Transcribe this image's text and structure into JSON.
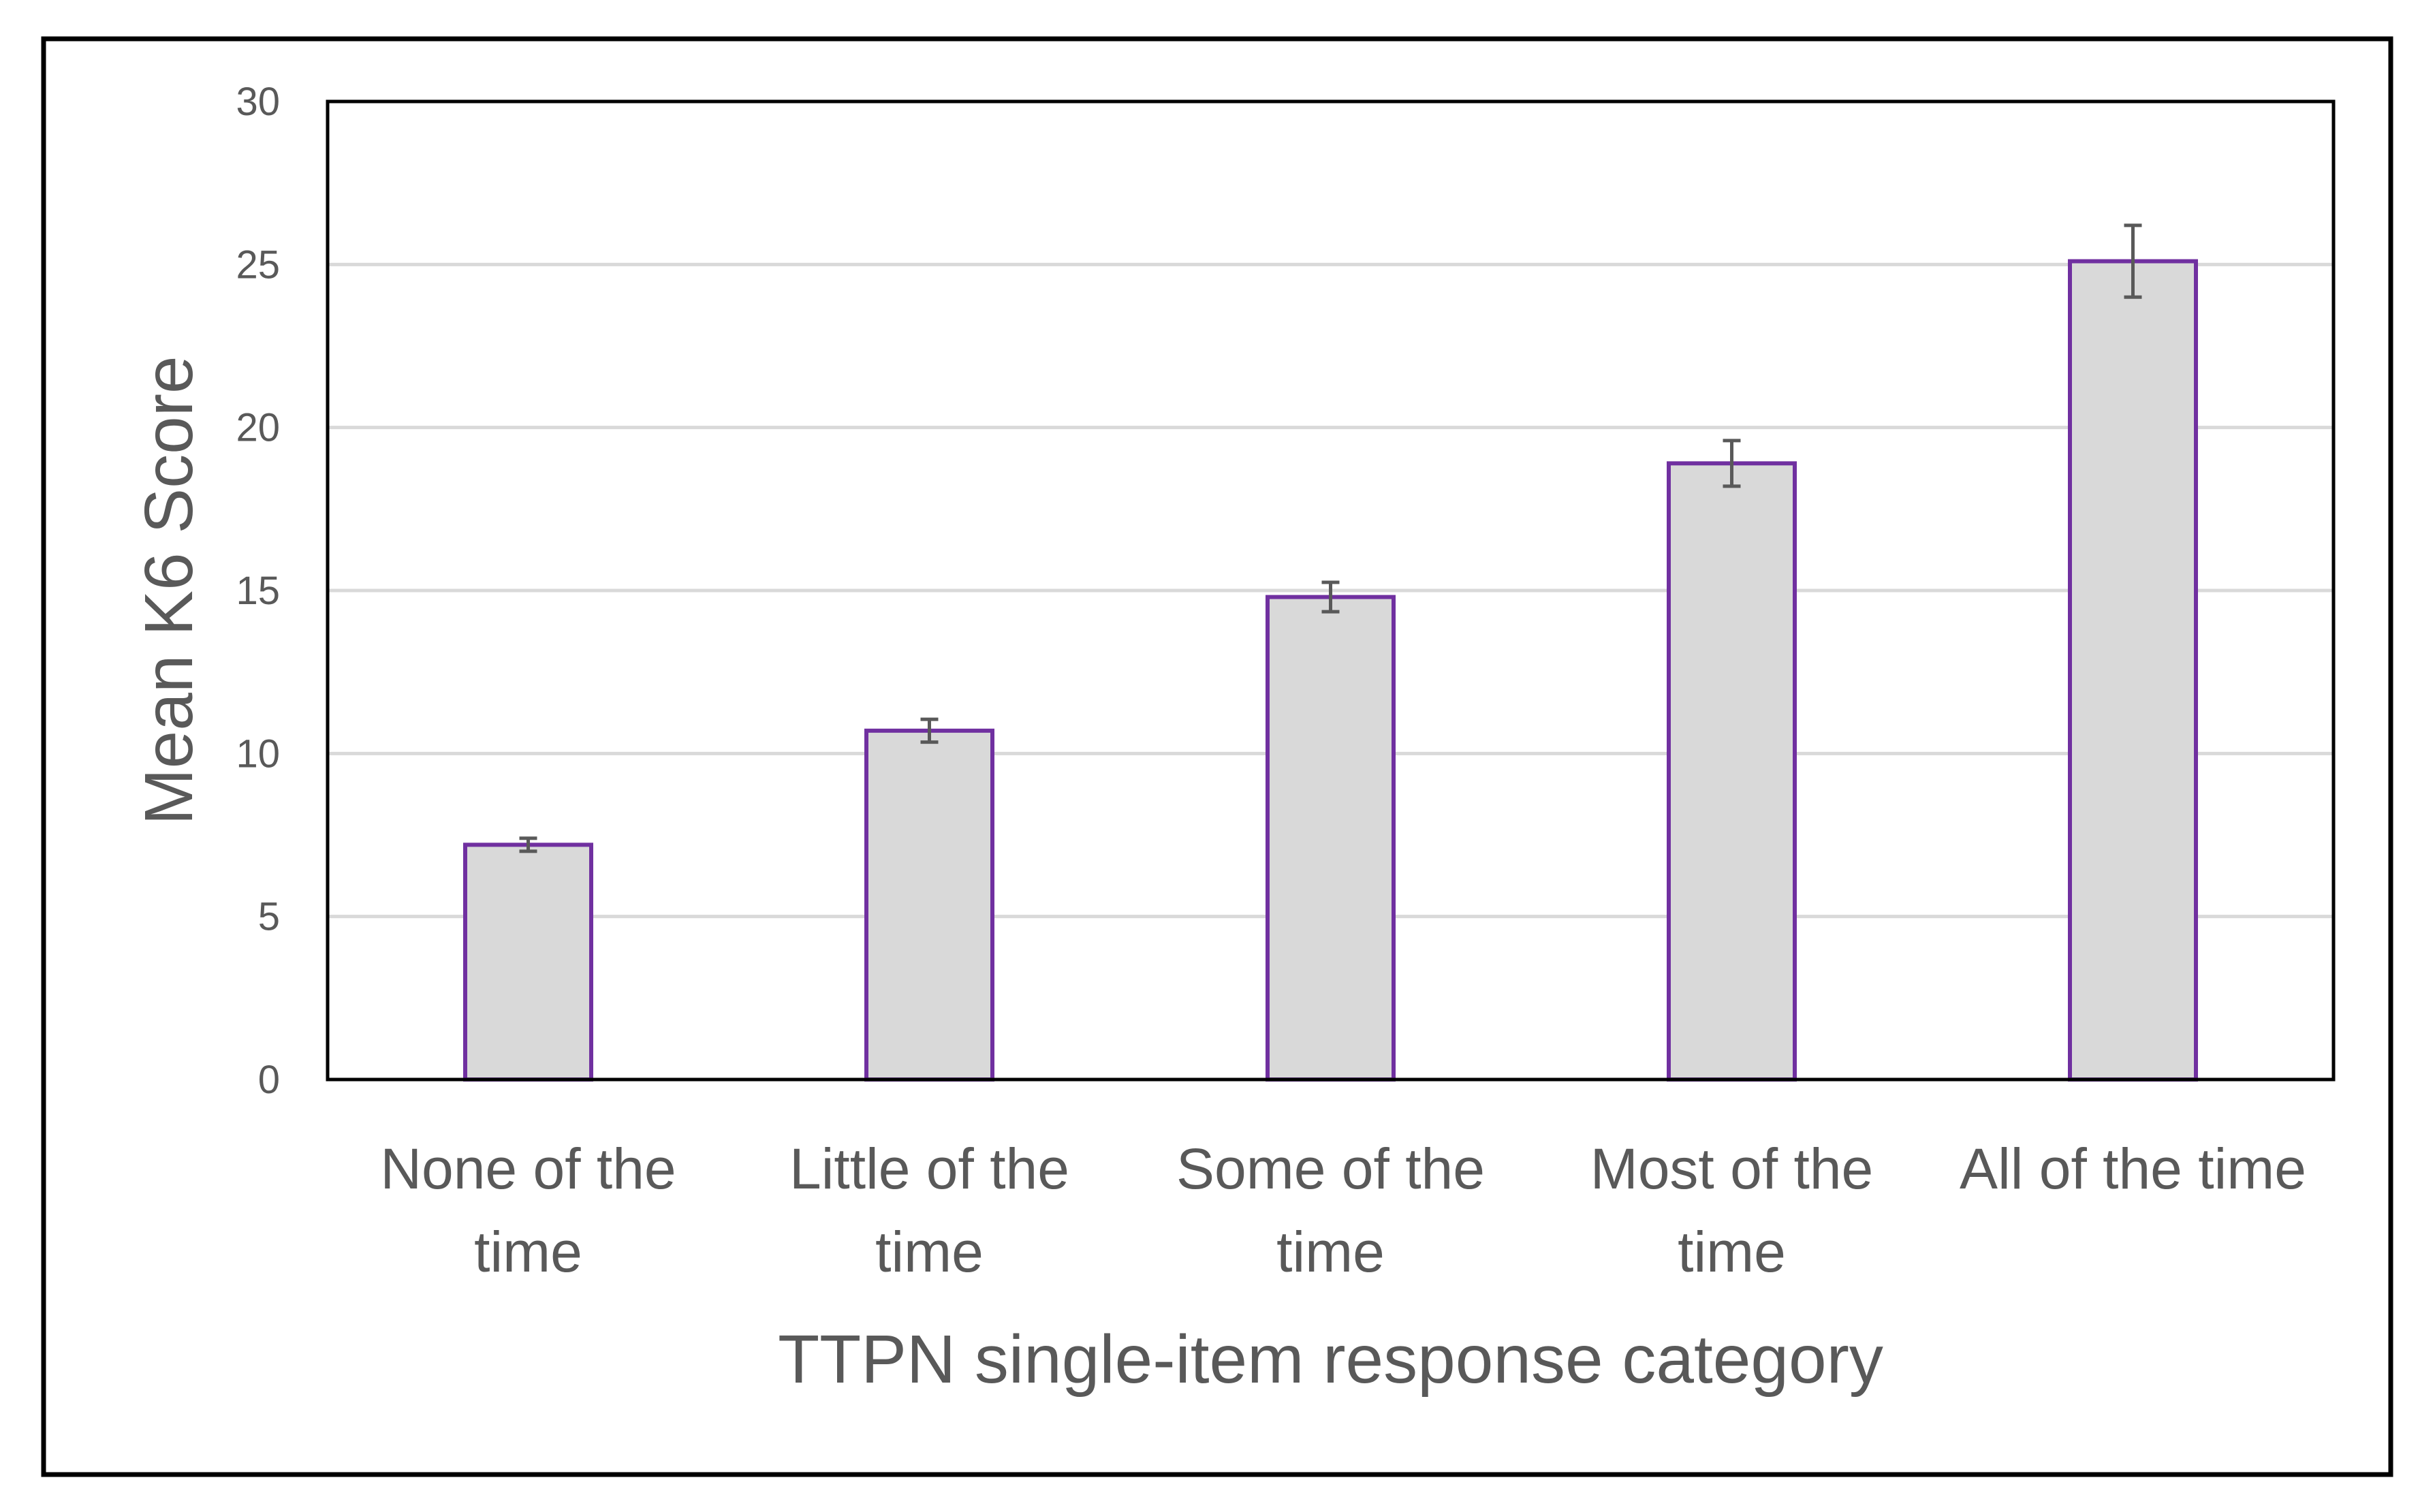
{
  "chart_data": {
    "type": "bar",
    "title": "",
    "xlabel": "TTPN single-item response category",
    "ylabel": "Mean K6 Score",
    "categories": [
      [
        "None of the",
        "time"
      ],
      [
        "Little of the",
        "time"
      ],
      [
        "Some of the",
        "time"
      ],
      [
        "Most of the",
        "time"
      ],
      [
        "All of the time"
      ]
    ],
    "series": [
      {
        "values": [
          7.2,
          10.7,
          14.8,
          18.9,
          25.1
        ],
        "error": [
          0.2,
          0.35,
          0.45,
          0.7,
          1.1
        ]
      }
    ],
    "ylim": [
      0,
      30
    ],
    "yticks": [
      "0",
      "5",
      "10",
      "15",
      "20",
      "25",
      "30"
    ],
    "grid": true,
    "legend": "none",
    "colors": {
      "bar_fill": "#d9d9d9",
      "bar_stroke": "#7030a0",
      "error_bar": "#595959",
      "gridline": "#d9d9d9",
      "plot_border": "#000000",
      "outer_border": "#000000",
      "text": "#595959"
    }
  }
}
